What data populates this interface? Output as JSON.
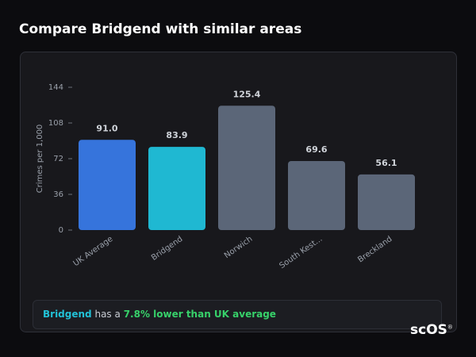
{
  "chart_data": {
    "type": "bar",
    "title": "Compare Bridgend with similar areas",
    "y_label": "Crimes per 1,000",
    "categories": [
      "UK Average",
      "Bridgend",
      "Norwich",
      "South Kest...",
      "Breckland"
    ],
    "values": [
      91.0,
      83.9,
      125.4,
      69.6,
      56.1
    ],
    "value_labels": [
      "91.0",
      "83.9",
      "125.4",
      "69.6",
      "56.1"
    ],
    "colors": [
      "#3674dc",
      "#1fb8d2",
      "#5b6678",
      "#5b6678",
      "#5b6678"
    ],
    "ylim": [
      0,
      144
    ],
    "yticks": [
      0,
      36,
      72,
      108,
      144
    ]
  },
  "summary": {
    "area": "Bridgend",
    "text": "has a",
    "difference": "7.8% lower than UK average"
  },
  "logo": {
    "text": "scOS",
    "mark": "®"
  }
}
